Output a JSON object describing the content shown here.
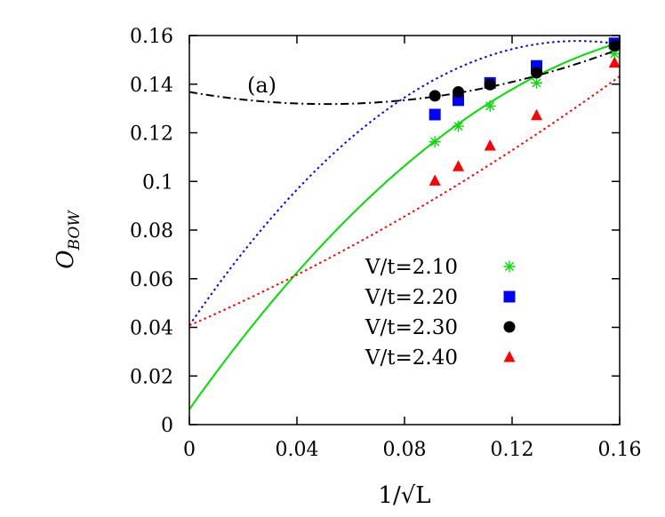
{
  "chart_data": {
    "type": "scatter",
    "panel_label": "(a)",
    "xlabel": "1/√L",
    "ylabel_main": "O",
    "ylabel_sub": "BOW",
    "xlim": [
      0,
      0.16
    ],
    "ylim": [
      0,
      0.16
    ],
    "x_ticks": [
      0,
      0.04,
      0.08,
      0.12,
      0.16
    ],
    "x_tick_labels": [
      "0",
      "0.04",
      "0.08",
      "0.12",
      "0.16"
    ],
    "y_ticks": [
      0,
      0.02,
      0.04,
      0.06,
      0.08,
      0.1,
      0.12,
      0.14,
      0.16
    ],
    "y_tick_labels": [
      "0",
      "0.02",
      "0.04",
      "0.06",
      "0.08",
      "0.1",
      "0.12",
      "0.14",
      "0.16"
    ],
    "grid": false,
    "legend_position": "bottom-right",
    "series": [
      {
        "name": "V/t=2.10",
        "color": "#00e000",
        "marker": "asterisk",
        "fit_style": "solid",
        "x": [
          0.0913,
          0.1,
          0.1118,
          0.1291,
          0.1581
        ],
        "y": [
          0.1163,
          0.1227,
          0.131,
          0.1405,
          0.1525
        ],
        "fit_coeffs": [
          0.0063,
          1.56,
          -3.86
        ]
      },
      {
        "name": "V/t=2.20",
        "color": "#0000ff",
        "marker": "square",
        "fit_style": "dotted",
        "x": [
          0.0913,
          0.1,
          0.1118,
          0.1291,
          0.1581
        ],
        "y": [
          0.1275,
          0.1334,
          0.1405,
          0.1475,
          0.1568
        ],
        "fit_coeffs": [
          0.0408,
          1.62,
          -5.61
        ]
      },
      {
        "name": "V/t=2.30",
        "color": "#000000",
        "marker": "circle",
        "fit_style": "dashdot",
        "x": [
          0.0913,
          0.1,
          0.1118,
          0.1291,
          0.1581
        ],
        "y": [
          0.1352,
          0.1368,
          0.1398,
          0.1447,
          0.1558
        ],
        "fit_coeffs": [
          0.1368,
          -0.195,
          1.91
        ]
      },
      {
        "name": "V/t=2.40",
        "color": "#ff0000",
        "marker": "triangle",
        "fit_style": "dotted",
        "x": [
          0.0913,
          0.1,
          0.1118,
          0.1291,
          0.1581
        ],
        "y": [
          0.1003,
          0.1062,
          0.1147,
          0.1272,
          0.1488
        ],
        "fit_coeffs": [
          0.0408,
          0.48,
          1.0
        ]
      }
    ]
  }
}
